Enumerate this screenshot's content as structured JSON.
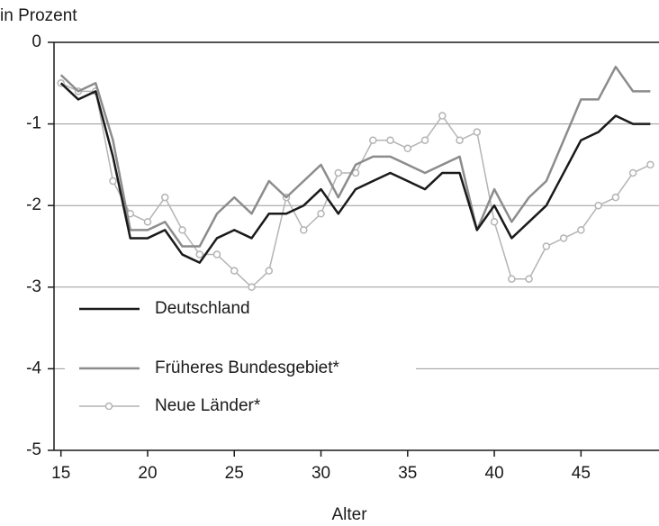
{
  "chart_data": {
    "type": "line",
    "y_label": "in Prozent",
    "x_label": "Alter",
    "x": [
      15,
      16,
      17,
      18,
      19,
      20,
      21,
      22,
      23,
      24,
      25,
      26,
      27,
      28,
      29,
      30,
      31,
      32,
      33,
      34,
      35,
      36,
      37,
      38,
      39,
      40,
      41,
      42,
      43,
      44,
      45,
      46,
      47,
      48,
      49
    ],
    "series": [
      {
        "name": "Deutschland",
        "color": "#1a1a1a",
        "marker": false,
        "values": [
          -0.5,
          -0.7,
          -0.6,
          -1.4,
          -2.4,
          -2.4,
          -2.3,
          -2.6,
          -2.7,
          -2.4,
          -2.3,
          -2.4,
          -2.1,
          -2.1,
          -2.0,
          -1.8,
          -2.1,
          -1.8,
          -1.7,
          -1.6,
          -1.7,
          -1.8,
          -1.6,
          -1.6,
          -2.3,
          -2.0,
          -2.4,
          -2.2,
          -2.0,
          -1.6,
          -1.2,
          -1.1,
          -0.9,
          -1.0,
          -1.0
        ]
      },
      {
        "name": "Früheres Bundesgebiet*",
        "color": "#8c8c8c",
        "marker": false,
        "values": [
          -0.4,
          -0.6,
          -0.5,
          -1.2,
          -2.3,
          -2.3,
          -2.2,
          -2.5,
          -2.5,
          -2.1,
          -1.9,
          -2.1,
          -1.7,
          -1.9,
          -1.7,
          -1.5,
          -1.9,
          -1.5,
          -1.4,
          -1.4,
          -1.5,
          -1.6,
          -1.5,
          -1.4,
          -2.3,
          -1.8,
          -2.2,
          -1.9,
          -1.7,
          -1.2,
          -0.7,
          -0.7,
          -0.3,
          -0.6,
          -0.6
        ]
      },
      {
        "name": "Neue Länder*",
        "color": "#b4b4b4",
        "marker": true,
        "values": [
          -0.5,
          -0.6,
          -0.6,
          -1.7,
          -2.1,
          -2.2,
          -1.9,
          -2.3,
          -2.6,
          -2.6,
          -2.8,
          -3.0,
          -2.8,
          -1.9,
          -2.3,
          -2.1,
          -1.6,
          -1.6,
          -1.2,
          -1.2,
          -1.3,
          -1.2,
          -0.9,
          -1.2,
          -1.1,
          -2.2,
          -2.9,
          -2.9,
          -2.5,
          -2.4,
          -2.3,
          -2.0,
          -1.9,
          -1.6,
          -1.5
        ]
      }
    ],
    "xlim": [
      14.6,
      49.5
    ],
    "xticks": [
      15,
      20,
      25,
      30,
      35,
      40,
      45
    ],
    "ylim": [
      -5,
      0
    ],
    "yticks": [
      -5,
      -4,
      -3,
      -2,
      -1,
      0
    ],
    "grid": true,
    "legend": "lower left"
  }
}
